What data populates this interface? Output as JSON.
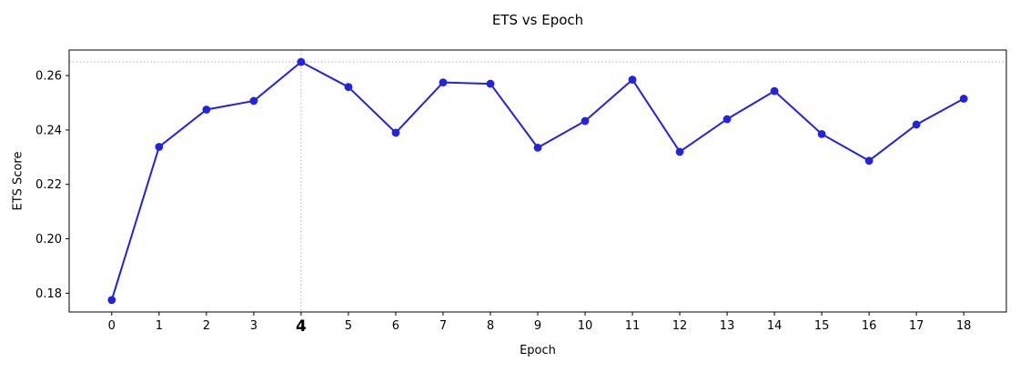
{
  "figure": {
    "title": "ETS vs Epoch",
    "xlabel": "Epoch",
    "ylabel": "ETS Score"
  },
  "chart_data": {
    "type": "line",
    "title": "ETS vs Epoch",
    "xlabel": "Epoch",
    "ylabel": "ETS Score",
    "x": [
      0,
      1,
      2,
      3,
      4,
      5,
      6,
      7,
      8,
      9,
      10,
      11,
      12,
      13,
      14,
      15,
      16,
      17,
      18
    ],
    "series": [
      {
        "name": "ETS Score",
        "values": [
          0.1775,
          0.2338,
          0.2475,
          0.2507,
          0.265,
          0.2558,
          0.239,
          0.2575,
          0.257,
          0.2335,
          0.2433,
          0.2585,
          0.232,
          0.244,
          0.2543,
          0.2385,
          0.2287,
          0.242,
          0.2515
        ]
      }
    ],
    "xticks": [
      0,
      1,
      2,
      3,
      4,
      5,
      6,
      7,
      8,
      9,
      10,
      11,
      12,
      13,
      14,
      15,
      16,
      17,
      18
    ],
    "yticks": [
      0.18,
      0.2,
      0.22,
      0.24,
      0.26
    ],
    "xlim": [
      -0.9,
      18.9
    ],
    "ylim": [
      0.1731,
      0.2694
    ],
    "grid": false,
    "legend": "none",
    "line_color": "#2222e0",
    "marker": "circle",
    "marker_radius": 4.4,
    "guide_color": "#b8b8b8",
    "guides": {
      "hline_y": 0.265,
      "vline_x": 4
    },
    "highlight_tick": 4,
    "best_epoch": 4,
    "best_score": 0.265
  }
}
